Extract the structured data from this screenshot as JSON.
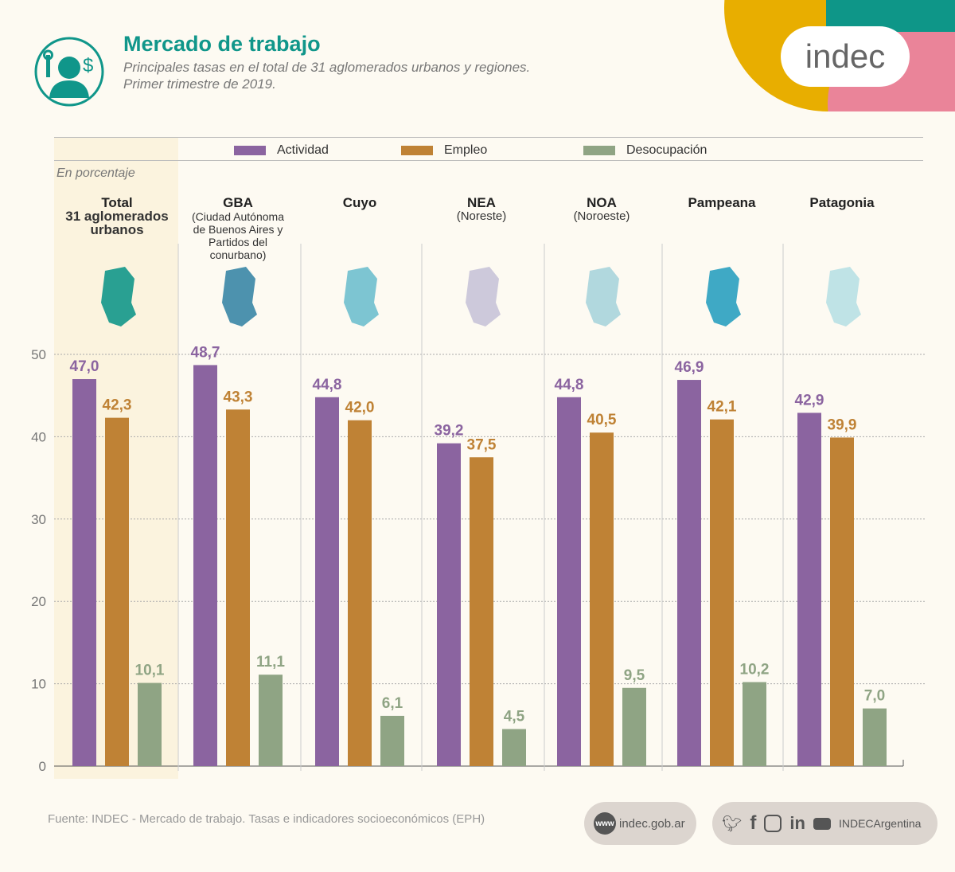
{
  "header": {
    "title": "Mercado de trabajo",
    "subtitle_line1": "Principales tasas en el total de 31 aglomerados urbanos y regiones.",
    "subtitle_line2": "Primer trimestre de 2019.",
    "logo": "indec"
  },
  "colors": {
    "actividad": "#8b64a0",
    "empleo": "#bf8235",
    "desocupacion": "#8fa484",
    "teal": "#10968a",
    "highlight": "#fbf3de"
  },
  "chart_data": {
    "type": "bar",
    "ylabel": "En porcentaje",
    "ylim": [
      0,
      50
    ],
    "yticks": [
      "0",
      "10",
      "20",
      "30",
      "40",
      "50"
    ],
    "grid": true,
    "legend_position": "top",
    "categories": [
      {
        "title": "Total",
        "subtitle": "31 aglomerados urbanos",
        "bold_sub": true
      },
      {
        "title": "GBA",
        "subtitle": "(Ciudad Autónoma de Buenos Aires y Partidos del conurbano)",
        "bold_sub": false
      },
      {
        "title": "Cuyo",
        "subtitle": "",
        "bold_sub": false
      },
      {
        "title": "NEA",
        "subtitle": "(Noreste)",
        "bold_sub": false
      },
      {
        "title": "NOA",
        "subtitle": "(Noroeste)",
        "bold_sub": false
      },
      {
        "title": "Pampeana",
        "subtitle": "",
        "bold_sub": false
      },
      {
        "title": "Patagonia",
        "subtitle": "",
        "bold_sub": false
      }
    ],
    "series": [
      {
        "name": "Actividad",
        "values": [
          47.0,
          48.7,
          44.8,
          39.2,
          44.8,
          46.9,
          42.9
        ],
        "labels": [
          "47,0",
          "48,7",
          "44,8",
          "39,2",
          "44,8",
          "46,9",
          "42,9"
        ]
      },
      {
        "name": "Empleo",
        "values": [
          42.3,
          43.3,
          42.0,
          37.5,
          40.5,
          42.1,
          39.9
        ],
        "labels": [
          "42,3",
          "43,3",
          "42,0",
          "37,5",
          "40,5",
          "42,1",
          "39,9"
        ]
      },
      {
        "name": "Desocupación",
        "values": [
          10.1,
          11.1,
          6.1,
          4.5,
          9.5,
          10.2,
          7.0
        ],
        "labels": [
          "10,1",
          "11,1",
          "6,1",
          "4,5",
          "9,5",
          "10,2",
          "7,0"
        ]
      }
    ]
  },
  "footer": {
    "source": "Fuente: INDEC - Mercado de trabajo. Tasas e indicadores socioeconómicos (EPH)",
    "www_badge": "www",
    "website": "indec.gob.ar",
    "social_handle": "INDECArgentina"
  }
}
